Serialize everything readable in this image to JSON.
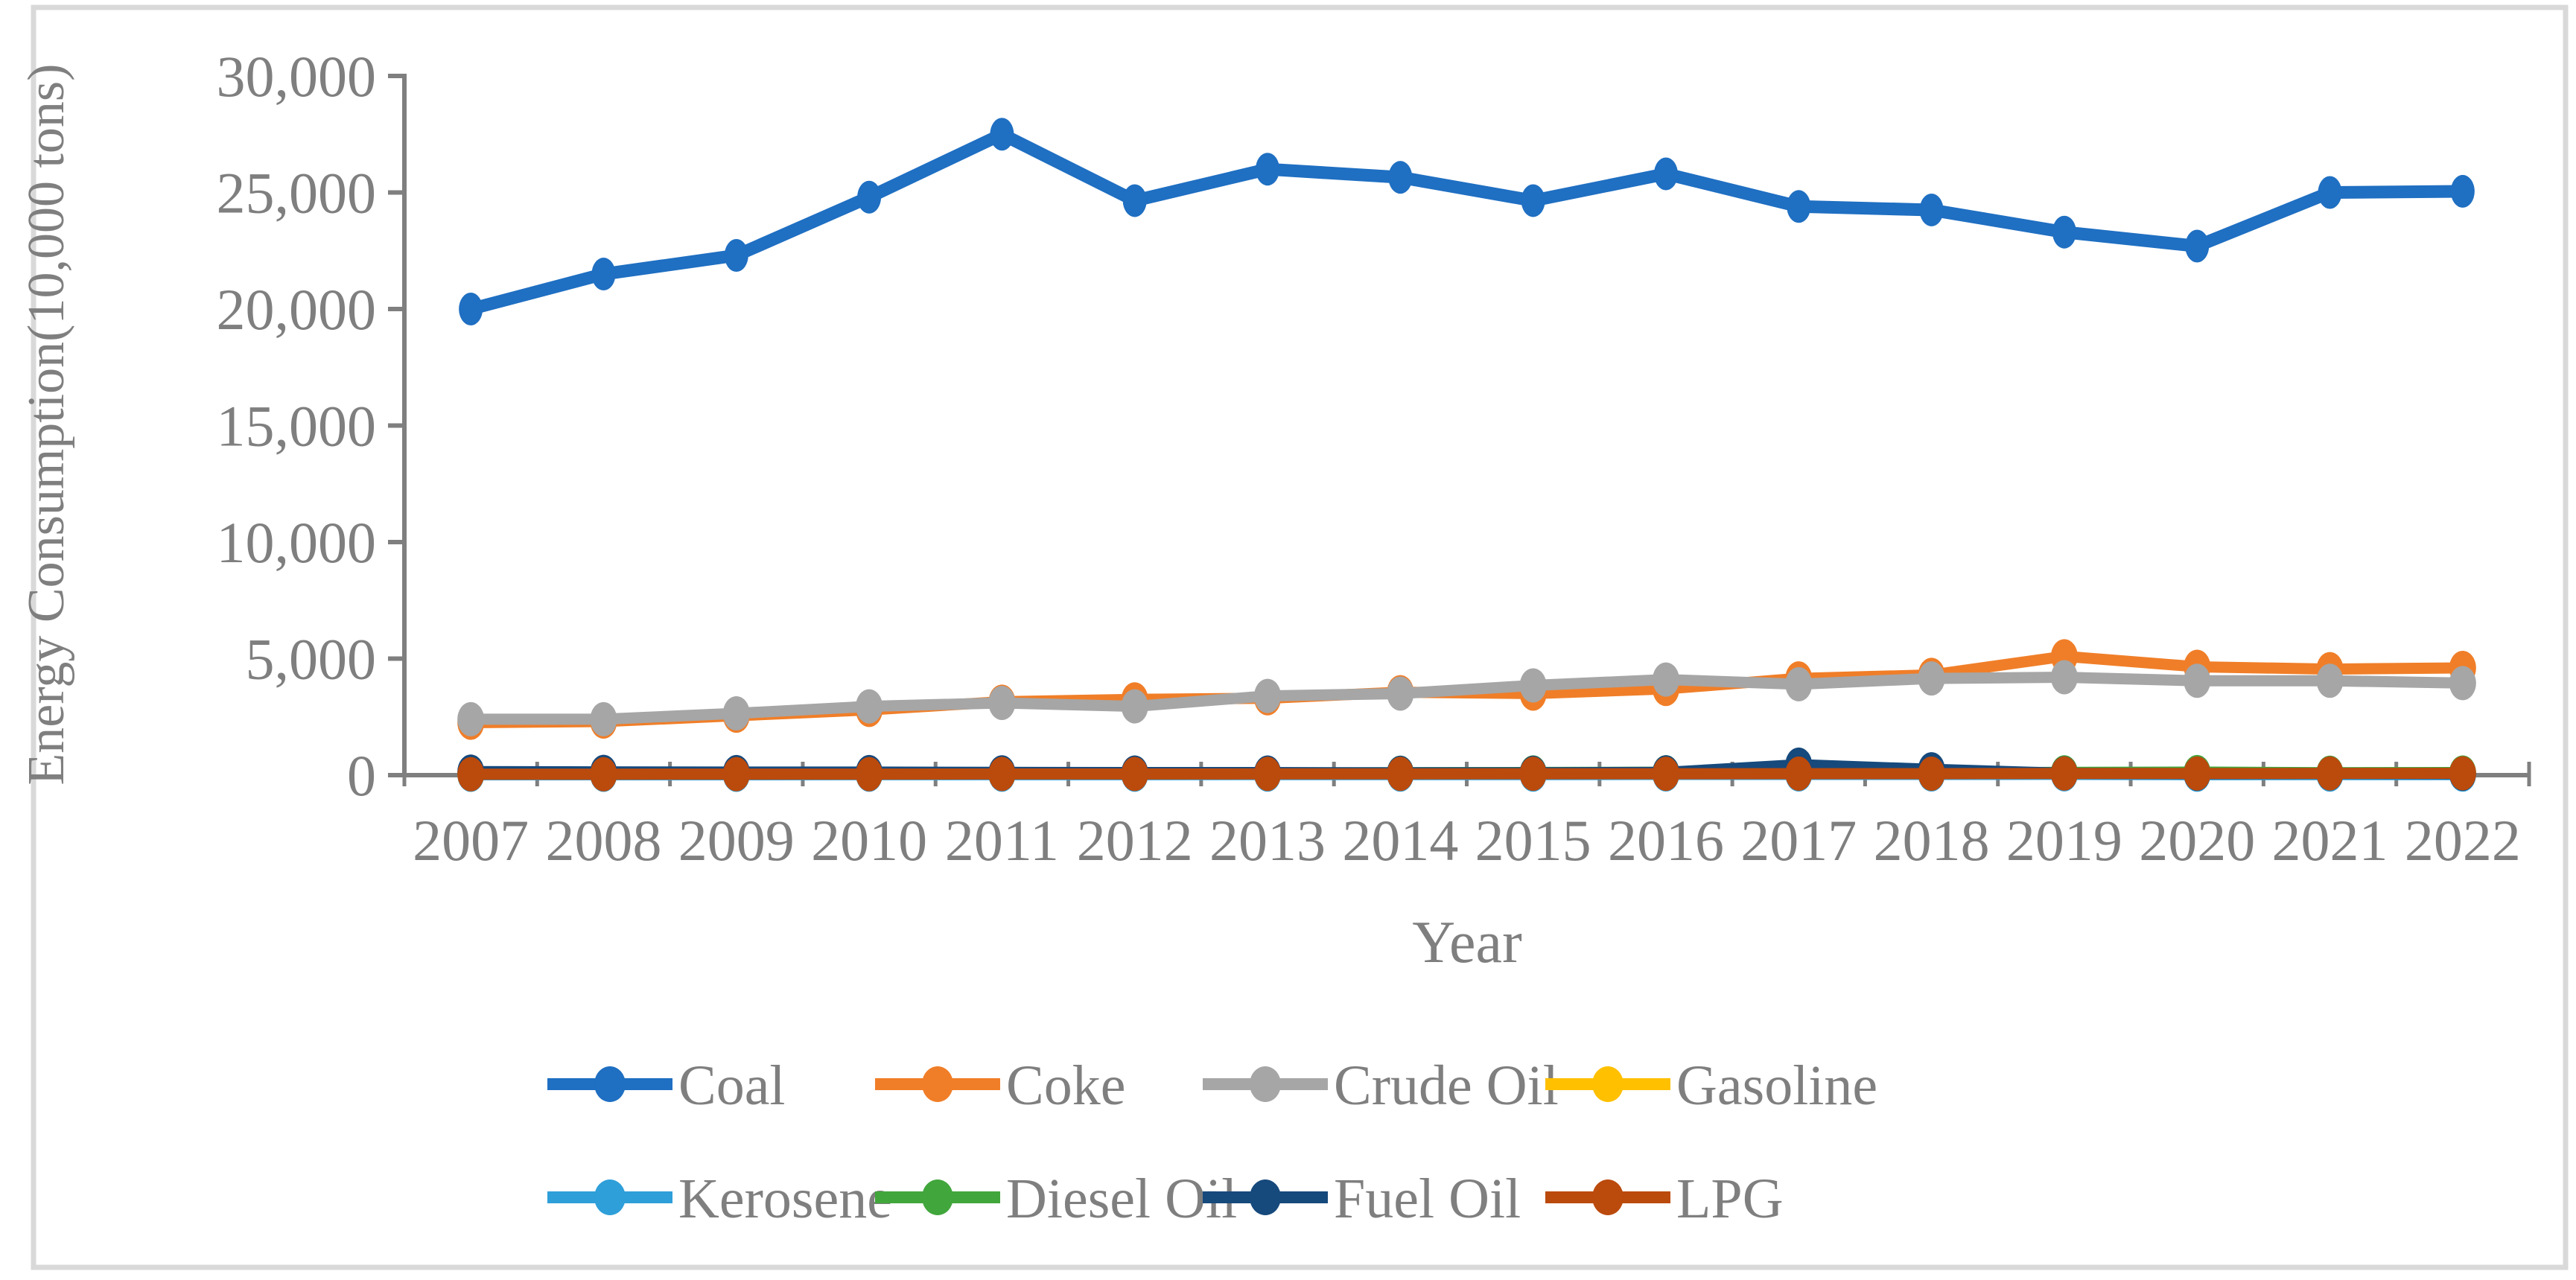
{
  "chart_data": {
    "type": "line",
    "title": "",
    "xlabel": "Year",
    "ylabel": "Energy Consumption(10,000 tons)",
    "x": [
      2007,
      2008,
      2009,
      2010,
      2011,
      2012,
      2013,
      2014,
      2015,
      2016,
      2017,
      2018,
      2019,
      2020,
      2021,
      2022
    ],
    "ylim": [
      0,
      30000
    ],
    "yticks": [
      0,
      5000,
      10000,
      15000,
      20000,
      25000,
      30000
    ],
    "ytick_labels": [
      "0",
      "5,000",
      "10,000",
      "15,000",
      "20,000",
      "25,000",
      "30,000"
    ],
    "grid": false,
    "legend_position": "bottom",
    "series": [
      {
        "name": "Coal",
        "color": "#1F6FC2",
        "values": [
          20000,
          21500,
          22300,
          24800,
          27500,
          24650,
          26000,
          25650,
          24650,
          25800,
          24400,
          24250,
          23300,
          22700,
          25000,
          25050
        ]
      },
      {
        "name": "Coke",
        "color": "#F07E28",
        "values": [
          2250,
          2300,
          2550,
          2800,
          3150,
          3250,
          3300,
          3560,
          3500,
          3700,
          4150,
          4300,
          5100,
          4650,
          4550,
          4600
        ]
      },
      {
        "name": "Crude Oil",
        "color": "#A6A6A6",
        "values": [
          2400,
          2400,
          2650,
          2950,
          3100,
          2950,
          3400,
          3500,
          3850,
          4100,
          3900,
          4150,
          4200,
          4050,
          4050,
          3950
        ]
      },
      {
        "name": "Gasoline",
        "color": "#FFC000",
        "values": [
          35,
          35,
          40,
          45,
          50,
          55,
          60,
          65,
          70,
          75,
          75,
          80,
          85,
          80,
          85,
          90
        ]
      },
      {
        "name": "Kerosene",
        "color": "#2E9FD9",
        "values": [
          15,
          15,
          15,
          20,
          20,
          20,
          25,
          25,
          25,
          30,
          30,
          30,
          35,
          20,
          25,
          25
        ]
      },
      {
        "name": "Diesel Oil",
        "color": "#41A63C",
        "values": [
          60,
          60,
          65,
          70,
          75,
          80,
          95,
          105,
          115,
          125,
          100,
          90,
          120,
          130,
          105,
          110
        ]
      },
      {
        "name": "Fuel Oil",
        "color": "#16497C",
        "values": [
          150,
          140,
          130,
          130,
          120,
          110,
          110,
          100,
          100,
          120,
          450,
          250,
          80,
          60,
          70,
          60
        ]
      },
      {
        "name": "LPG",
        "color": "#BB4A0D",
        "values": [
          40,
          40,
          45,
          45,
          50,
          50,
          55,
          55,
          60,
          60,
          65,
          65,
          70,
          70,
          75,
          80
        ]
      }
    ]
  },
  "legend": {
    "rows": [
      [
        "Coal",
        "Coke",
        "Crude Oil",
        "Gasoline"
      ],
      [
        "Kerosene",
        "Diesel Oil",
        "Fuel Oil",
        "LPG"
      ]
    ]
  },
  "style": {
    "axis_color": "#7F7F7F",
    "text_color": "#7F7F7F",
    "border_color": "#D9D9D9",
    "background": "#FFFFFF"
  }
}
